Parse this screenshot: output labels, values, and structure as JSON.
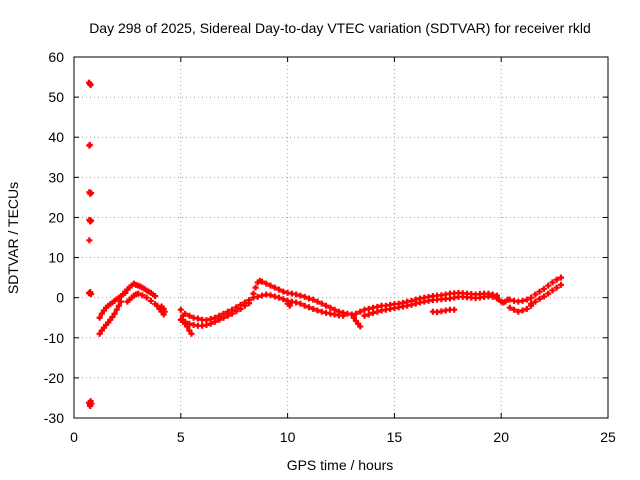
{
  "chart_data": {
    "type": "scatter",
    "title": "Day 298 of 2025, Sidereal Day-to-day VTEC variation (SDTVAR) for receiver rkld",
    "xlabel": "GPS time / hours",
    "ylabel": "SDTVAR / TECUs",
    "xlim": [
      0,
      25
    ],
    "ylim": [
      -30,
      60
    ],
    "xticks": [
      0,
      5,
      10,
      15,
      20,
      25
    ],
    "xtick_labels": [
      "0",
      "5",
      "10",
      "15",
      "20",
      "25"
    ],
    "yticks": [
      -30,
      -20,
      -10,
      0,
      10,
      20,
      30,
      40,
      50,
      60
    ],
    "ytick_labels": [
      "-30",
      "-20",
      "-10",
      "0",
      "10",
      "20",
      "30",
      "40",
      "50",
      "60"
    ],
    "grid": true,
    "marker": "+",
    "series": [
      {
        "name": "SDTVAR",
        "color": "#ff0000",
        "points": [
          [
            0.7,
            53.6
          ],
          [
            0.75,
            53.3
          ],
          [
            0.78,
            53.0
          ],
          [
            0.72,
            37.9
          ],
          [
            0.74,
            38.1
          ],
          [
            0.72,
            26.3
          ],
          [
            0.76,
            25.9
          ],
          [
            0.8,
            26.1
          ],
          [
            0.72,
            19.4
          ],
          [
            0.76,
            19.0
          ],
          [
            0.8,
            19.2
          ],
          [
            0.72,
            14.3
          ],
          [
            0.7,
            1.1
          ],
          [
            0.76,
            1.4
          ],
          [
            0.8,
            0.9
          ],
          [
            0.7,
            -26.2
          ],
          [
            0.74,
            -26.8
          ],
          [
            0.78,
            -25.8
          ],
          [
            0.82,
            -26.4
          ],
          [
            0.76,
            -27.0
          ],
          [
            1.2,
            -5.0
          ],
          [
            1.3,
            -4.0
          ],
          [
            1.4,
            -3.2
          ],
          [
            1.5,
            -2.5
          ],
          [
            1.6,
            -2.0
          ],
          [
            1.7,
            -1.6
          ],
          [
            1.8,
            -1.2
          ],
          [
            1.9,
            -0.8
          ],
          [
            2.0,
            -0.4
          ],
          [
            2.1,
            0.0
          ],
          [
            2.2,
            0.4
          ],
          [
            2.3,
            0.8
          ],
          [
            2.4,
            1.2
          ],
          [
            1.2,
            -9.0
          ],
          [
            1.3,
            -8.2
          ],
          [
            1.4,
            -7.5
          ],
          [
            1.5,
            -6.8
          ],
          [
            1.6,
            -6.2
          ],
          [
            1.7,
            -5.5
          ],
          [
            1.8,
            -4.8
          ],
          [
            1.9,
            -4.0
          ],
          [
            2.0,
            -3.0
          ],
          [
            2.1,
            -2.0
          ],
          [
            2.2,
            -1.0
          ],
          [
            2.4,
            1.5
          ],
          [
            2.5,
            2.0
          ],
          [
            2.6,
            2.6
          ],
          [
            2.7,
            3.0
          ],
          [
            2.8,
            3.5
          ],
          [
            2.9,
            3.2
          ],
          [
            3.0,
            3.0
          ],
          [
            3.1,
            2.8
          ],
          [
            3.2,
            2.5
          ],
          [
            3.3,
            2.2
          ],
          [
            3.4,
            1.8
          ],
          [
            3.5,
            1.5
          ],
          [
            3.6,
            1.2
          ],
          [
            3.7,
            0.8
          ],
          [
            3.8,
            0.4
          ],
          [
            2.5,
            -1.0
          ],
          [
            2.6,
            -0.5
          ],
          [
            2.7,
            0.0
          ],
          [
            2.8,
            0.5
          ],
          [
            2.9,
            0.8
          ],
          [
            3.0,
            1.0
          ],
          [
            3.2,
            0.6
          ],
          [
            3.4,
            0.0
          ],
          [
            3.6,
            -0.8
          ],
          [
            3.8,
            -1.6
          ],
          [
            3.9,
            -2.0
          ],
          [
            4.0,
            -2.8
          ],
          [
            4.1,
            -3.5
          ],
          [
            4.2,
            -4.2
          ],
          [
            4.1,
            -2.2
          ],
          [
            4.2,
            -2.8
          ],
          [
            4.25,
            -3.5
          ],
          [
            5.0,
            -3.0
          ],
          [
            5.1,
            -4.5
          ],
          [
            5.2,
            -6.0
          ],
          [
            5.3,
            -7.2
          ],
          [
            5.4,
            -8.2
          ],
          [
            5.5,
            -9.0
          ],
          [
            5.0,
            -5.5
          ],
          [
            5.1,
            -6.0
          ],
          [
            5.2,
            -6.5
          ],
          [
            5.2,
            -4.0
          ],
          [
            5.4,
            -4.5
          ],
          [
            5.6,
            -5.0
          ],
          [
            5.8,
            -5.2
          ],
          [
            6.0,
            -5.5
          ],
          [
            6.2,
            -5.6
          ],
          [
            6.4,
            -5.3
          ],
          [
            6.6,
            -5.0
          ],
          [
            6.8,
            -4.5
          ],
          [
            7.0,
            -4.0
          ],
          [
            7.2,
            -3.5
          ],
          [
            7.4,
            -3.0
          ],
          [
            7.6,
            -2.4
          ],
          [
            7.8,
            -1.8
          ],
          [
            8.0,
            -1.2
          ],
          [
            8.2,
            -0.6
          ],
          [
            8.4,
            0.0
          ],
          [
            5.4,
            -6.5
          ],
          [
            5.6,
            -6.8
          ],
          [
            5.8,
            -7.0
          ],
          [
            6.0,
            -7.0
          ],
          [
            6.2,
            -6.8
          ],
          [
            6.4,
            -6.5
          ],
          [
            6.6,
            -6.0
          ],
          [
            6.8,
            -5.5
          ],
          [
            7.0,
            -5.0
          ],
          [
            7.2,
            -4.5
          ],
          [
            7.4,
            -4.0
          ],
          [
            7.6,
            -3.4
          ],
          [
            7.8,
            -2.8
          ],
          [
            8.0,
            -2.0
          ],
          [
            8.2,
            -1.4
          ],
          [
            8.4,
            1.0
          ],
          [
            8.5,
            2.5
          ],
          [
            8.6,
            3.8
          ],
          [
            8.7,
            4.2
          ],
          [
            8.8,
            4.0
          ],
          [
            9.0,
            3.5
          ],
          [
            9.2,
            3.0
          ],
          [
            9.4,
            2.5
          ],
          [
            9.6,
            2.0
          ],
          [
            9.8,
            1.5
          ],
          [
            10.0,
            1.2
          ],
          [
            10.2,
            1.0
          ],
          [
            10.4,
            0.8
          ],
          [
            10.6,
            0.5
          ],
          [
            10.8,
            0.2
          ],
          [
            11.0,
            -0.2
          ],
          [
            11.2,
            -0.5
          ],
          [
            11.4,
            -1.0
          ],
          [
            11.6,
            -1.5
          ],
          [
            11.8,
            -2.0
          ],
          [
            8.6,
            0.2
          ],
          [
            8.8,
            0.5
          ],
          [
            9.0,
            0.8
          ],
          [
            9.2,
            0.6
          ],
          [
            9.4,
            0.3
          ],
          [
            9.6,
            0.0
          ],
          [
            9.8,
            -0.4
          ],
          [
            10.0,
            -0.8
          ],
          [
            10.2,
            -1.0
          ],
          [
            10.4,
            -1.2
          ],
          [
            10.6,
            -1.5
          ],
          [
            10.8,
            -2.0
          ],
          [
            11.0,
            -2.4
          ],
          [
            11.2,
            -2.8
          ],
          [
            11.4,
            -3.2
          ],
          [
            11.6,
            -3.5
          ],
          [
            11.8,
            -3.8
          ],
          [
            10.0,
            -1.5
          ],
          [
            10.1,
            -2.0
          ],
          [
            12.0,
            -2.5
          ],
          [
            12.2,
            -3.0
          ],
          [
            12.4,
            -3.5
          ],
          [
            12.6,
            -3.8
          ],
          [
            12.8,
            -4.0
          ],
          [
            12.0,
            -4.0
          ],
          [
            12.2,
            -4.2
          ],
          [
            12.4,
            -4.4
          ],
          [
            12.6,
            -4.5
          ],
          [
            13.0,
            -4.2
          ],
          [
            13.1,
            -5.0
          ],
          [
            13.2,
            -5.8
          ],
          [
            13.3,
            -6.5
          ],
          [
            13.4,
            -7.2
          ],
          [
            13.2,
            -4.0
          ],
          [
            13.4,
            -3.5
          ],
          [
            13.6,
            -3.0
          ],
          [
            13.8,
            -2.8
          ],
          [
            14.0,
            -2.5
          ],
          [
            14.2,
            -2.3
          ],
          [
            14.4,
            -2.0
          ],
          [
            14.6,
            -2.0
          ],
          [
            14.8,
            -1.8
          ],
          [
            15.0,
            -1.6
          ],
          [
            15.2,
            -1.5
          ],
          [
            15.4,
            -1.3
          ],
          [
            15.6,
            -1.0
          ],
          [
            15.8,
            -0.8
          ],
          [
            16.0,
            -0.5
          ],
          [
            13.6,
            -4.5
          ],
          [
            13.8,
            -4.2
          ],
          [
            14.0,
            -3.8
          ],
          [
            14.2,
            -3.5
          ],
          [
            14.4,
            -3.2
          ],
          [
            14.6,
            -3.0
          ],
          [
            14.8,
            -2.8
          ],
          [
            15.0,
            -2.6
          ],
          [
            15.2,
            -2.4
          ],
          [
            15.4,
            -2.2
          ],
          [
            15.6,
            -2.0
          ],
          [
            15.8,
            -1.8
          ],
          [
            16.0,
            -1.5
          ],
          [
            16.2,
            -0.2
          ],
          [
            16.4,
            0.0
          ],
          [
            16.6,
            0.2
          ],
          [
            16.8,
            0.4
          ],
          [
            17.0,
            0.5
          ],
          [
            17.2,
            0.6
          ],
          [
            17.4,
            0.8
          ],
          [
            17.6,
            1.0
          ],
          [
            17.8,
            1.1
          ],
          [
            18.0,
            1.2
          ],
          [
            18.2,
            1.1
          ],
          [
            18.4,
            1.0
          ],
          [
            18.6,
            0.9
          ],
          [
            18.8,
            0.8
          ],
          [
            19.0,
            0.9
          ],
          [
            19.2,
            1.0
          ],
          [
            19.4,
            1.0
          ],
          [
            19.6,
            0.8
          ],
          [
            19.8,
            0.5
          ],
          [
            16.2,
            -1.2
          ],
          [
            16.4,
            -1.0
          ],
          [
            16.6,
            -0.8
          ],
          [
            16.8,
            -0.6
          ],
          [
            17.0,
            -0.5
          ],
          [
            17.2,
            -0.4
          ],
          [
            17.4,
            -0.3
          ],
          [
            17.6,
            -0.2
          ],
          [
            17.8,
            0.0
          ],
          [
            18.0,
            0.2
          ],
          [
            18.2,
            0.2
          ],
          [
            18.4,
            0.1
          ],
          [
            18.6,
            0.0
          ],
          [
            18.8,
            -0.1
          ],
          [
            19.0,
            0.0
          ],
          [
            19.2,
            0.2
          ],
          [
            19.4,
            0.3
          ],
          [
            19.6,
            0.2
          ],
          [
            19.8,
            -0.2
          ],
          [
            16.8,
            -3.5
          ],
          [
            17.0,
            -3.6
          ],
          [
            17.2,
            -3.4
          ],
          [
            17.4,
            -3.2
          ],
          [
            17.6,
            -3.0
          ],
          [
            17.8,
            -3.0
          ],
          [
            19.9,
            -0.5
          ],
          [
            20.0,
            -1.0
          ],
          [
            20.1,
            -1.2
          ],
          [
            20.2,
            -1.0
          ],
          [
            20.3,
            -0.5
          ],
          [
            20.4,
            -0.5
          ],
          [
            20.6,
            -0.8
          ],
          [
            20.8,
            -1.0
          ],
          [
            21.0,
            -0.8
          ],
          [
            21.2,
            -0.5
          ],
          [
            20.4,
            -2.5
          ],
          [
            20.6,
            -3.0
          ],
          [
            20.8,
            -3.5
          ],
          [
            21.0,
            -3.2
          ],
          [
            21.2,
            -2.8
          ],
          [
            21.4,
            -2.0
          ],
          [
            21.4,
            0.0
          ],
          [
            21.6,
            0.8
          ],
          [
            21.8,
            1.5
          ],
          [
            22.0,
            2.2
          ],
          [
            22.2,
            3.0
          ],
          [
            22.4,
            3.8
          ],
          [
            22.6,
            4.5
          ],
          [
            22.8,
            5.0
          ],
          [
            21.4,
            -1.5
          ],
          [
            21.6,
            -1.0
          ],
          [
            21.8,
            -0.3
          ],
          [
            22.0,
            0.3
          ],
          [
            22.2,
            1.0
          ],
          [
            22.4,
            1.8
          ],
          [
            22.6,
            2.5
          ],
          [
            22.8,
            3.2
          ]
        ]
      }
    ]
  }
}
